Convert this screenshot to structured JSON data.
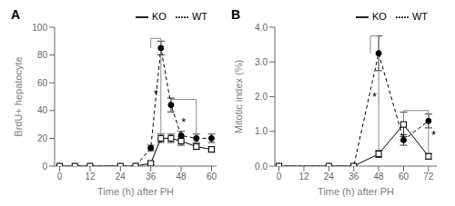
{
  "chart_data": [
    {
      "type": "line",
      "title": "A",
      "x_label": "Time (h) after PH",
      "y_label": "BrdU+ hepatocyte",
      "xlim": [
        -2,
        62
      ],
      "ylim": [
        0,
        100
      ],
      "xticks": [
        0,
        12,
        24,
        36,
        48,
        60
      ],
      "yticks": [
        0,
        20,
        40,
        60,
        80,
        100
      ],
      "grid": false,
      "legend": "upper right",
      "x": [
        0,
        6,
        12,
        24,
        30,
        36,
        40,
        44,
        48,
        54,
        60
      ],
      "series": [
        {
          "name": "WT",
          "color": "#000000",
          "marker": "circle",
          "line_style": "dashed",
          "values": [
            0,
            0,
            0,
            0,
            0,
            13,
            85,
            44,
            22,
            20,
            20
          ],
          "errors": [
            0,
            0,
            0,
            0,
            0,
            2,
            5,
            5,
            3,
            3,
            3
          ]
        },
        {
          "name": "KO",
          "color": "#000000",
          "marker": "square",
          "line_style": "solid",
          "values": [
            0,
            0,
            0,
            0,
            0,
            2,
            20,
            20,
            18,
            14,
            12
          ],
          "errors": [
            0,
            0,
            0,
            0,
            0,
            1,
            3,
            3,
            3,
            2,
            2
          ]
        }
      ],
      "brackets": [
        {
          "x": [
            36,
            36,
            40,
            40
          ],
          "y": [
            85,
            92,
            92,
            20
          ],
          "color": "#888888"
        },
        {
          "x": [
            44,
            44,
            54,
            54
          ],
          "y": [
            44,
            48,
            48,
            18
          ],
          "color": "#888888"
        }
      ],
      "annotations": [
        {
          "text": "*",
          "x": 38,
          "y": 52
        },
        {
          "text": "*",
          "x": 49,
          "y": 32
        }
      ]
    },
    {
      "type": "line",
      "title": "B",
      "x_label": "Time (h) after PH",
      "y_label": "Mitotic index (%)",
      "xlim": [
        -2,
        76
      ],
      "ylim": [
        0,
        4.0
      ],
      "xticks": [
        0,
        12,
        24,
        36,
        48,
        60,
        72
      ],
      "yticks": [
        {
          "value": 0,
          "label": "0.0"
        },
        {
          "value": 1,
          "label": "1.0"
        },
        {
          "value": 2,
          "label": "2.0"
        },
        {
          "value": 3,
          "label": "3.0"
        },
        {
          "value": 4,
          "label": "4.0"
        }
      ],
      "grid": false,
      "legend": "upper right",
      "x": [
        0,
        24,
        36,
        48,
        60,
        72
      ],
      "series": [
        {
          "name": "WT",
          "color": "#000000",
          "marker": "circle",
          "line_style": "dashed",
          "values": [
            0,
            0,
            0,
            3.25,
            0.75,
            1.3
          ],
          "errors": [
            0,
            0,
            0,
            0.5,
            0.15,
            0.2
          ]
        },
        {
          "name": "KO",
          "color": "#000000",
          "marker": "square",
          "line_style": "solid",
          "values": [
            0,
            0,
            0,
            0.35,
            1.2,
            0.28
          ],
          "errors": [
            0,
            0,
            0,
            0.1,
            0.35,
            0.08
          ]
        }
      ],
      "brackets": [
        {
          "x": [
            44,
            44,
            48,
            48
          ],
          "y": [
            3.25,
            3.75,
            3.75,
            0.35
          ],
          "color": "#888888"
        },
        {
          "x": [
            60,
            60,
            72,
            72
          ],
          "y": [
            1.2,
            1.6,
            1.6,
            0.28
          ],
          "color": "#888888"
        }
      ],
      "annotations": [
        {
          "text": "*",
          "x": 46,
          "y": 2.0
        },
        {
          "text": "*",
          "x": 74.5,
          "y": 0.9
        }
      ]
    }
  ]
}
